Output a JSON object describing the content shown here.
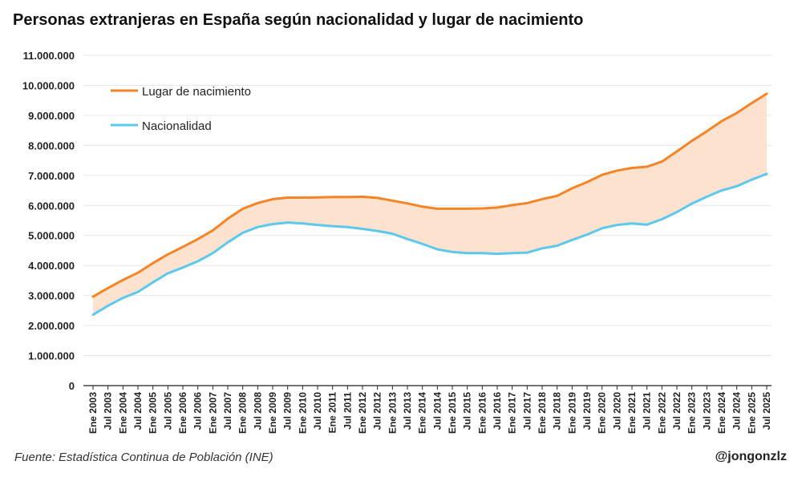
{
  "header": {
    "title": "Personas extranjeras en España según nacionalidad y lugar de nacimiento"
  },
  "footer": {
    "source": "Fuente: Estadística Continua de Población (INE)",
    "credit": "@jongonzlz"
  },
  "colors": {
    "birthplace": "#f58426",
    "nationality": "#5bc8ec",
    "band": "#fde2cf",
    "grid": "#e6e6e6",
    "axis": "#222222"
  },
  "chart_data": {
    "type": "line",
    "title": "Personas extranjeras en España según nacionalidad y lugar de nacimiento",
    "xlabel": "",
    "ylabel": "",
    "ylim": [
      0,
      11000000
    ],
    "yticks": [
      0,
      1000000,
      2000000,
      3000000,
      4000000,
      5000000,
      6000000,
      7000000,
      8000000,
      9000000,
      10000000,
      11000000
    ],
    "ytick_labels": [
      "0",
      "1.000.000",
      "2.000.000",
      "3.000.000",
      "4.000.000",
      "5.000.000",
      "6.000.000",
      "7.000.000",
      "8.000.000",
      "9.000.000",
      "10.000.000",
      "11.000.000"
    ],
    "grid": true,
    "legend_position": "top-left",
    "fill_between": true,
    "categories": [
      "Ene 2003",
      "Jul 2003",
      "Ene 2004",
      "Jul 2004",
      "Ene 2005",
      "Jul 2005",
      "Ene 2006",
      "Jul 2006",
      "Ene 2007",
      "Jul 2007",
      "Ene 2008",
      "Jul 2008",
      "Ene 2009",
      "Jul 2009",
      "Ene 2010",
      "Jul 2010",
      "Ene 2011",
      "Jul 2011",
      "Ene 2012",
      "Jul 2012",
      "Ene 2013",
      "Jul 2013",
      "Ene 2014",
      "Jul 2014",
      "Ene 2015",
      "Jul 2015",
      "Ene 2016",
      "Jul 2016",
      "Ene 2017",
      "Jul 2017",
      "Ene 2018",
      "Jul 2018",
      "Ene 2019",
      "Jul 2019",
      "Ene 2020",
      "Jul 2020",
      "Ene 2021",
      "Jul 2021",
      "Ene 2022",
      "Jul 2022",
      "Ene 2023",
      "Jul 2023",
      "Ene 2024",
      "Jul 2024",
      "Ene 2025",
      "Jul 2025"
    ],
    "series": [
      {
        "name": "Lugar de nacimiento",
        "values": [
          2960000,
          3250000,
          3520000,
          3760000,
          4080000,
          4370000,
          4620000,
          4880000,
          5170000,
          5560000,
          5890000,
          6080000,
          6210000,
          6260000,
          6260000,
          6270000,
          6280000,
          6280000,
          6290000,
          6250000,
          6160000,
          6070000,
          5960000,
          5890000,
          5890000,
          5890000,
          5900000,
          5930000,
          6010000,
          6080000,
          6210000,
          6320000,
          6570000,
          6780000,
          7020000,
          7160000,
          7250000,
          7290000,
          7460000,
          7800000,
          8150000,
          8470000,
          8810000,
          9080000,
          9410000,
          9720000
        ]
      },
      {
        "name": "Nacionalidad",
        "values": [
          2360000,
          2660000,
          2920000,
          3120000,
          3440000,
          3740000,
          3930000,
          4140000,
          4410000,
          4770000,
          5090000,
          5280000,
          5380000,
          5430000,
          5400000,
          5350000,
          5310000,
          5280000,
          5220000,
          5150000,
          5060000,
          4880000,
          4720000,
          4540000,
          4450000,
          4410000,
          4410000,
          4390000,
          4410000,
          4430000,
          4570000,
          4660000,
          4850000,
          5030000,
          5240000,
          5350000,
          5400000,
          5360000,
          5540000,
          5780000,
          6060000,
          6290000,
          6500000,
          6640000,
          6860000,
          7050000
        ]
      }
    ]
  }
}
